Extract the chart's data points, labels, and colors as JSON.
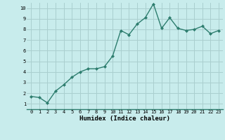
{
  "x": [
    0,
    1,
    2,
    3,
    4,
    5,
    6,
    7,
    8,
    9,
    10,
    11,
    12,
    13,
    14,
    15,
    16,
    17,
    18,
    19,
    20,
    21,
    22,
    23
  ],
  "y": [
    1.7,
    1.6,
    1.1,
    2.2,
    2.8,
    3.5,
    4.0,
    4.3,
    4.3,
    4.5,
    5.5,
    7.9,
    7.5,
    8.5,
    9.1,
    10.4,
    8.1,
    9.1,
    8.1,
    7.9,
    8.0,
    8.3,
    7.6,
    7.9
  ],
  "xlabel": "Humidex (Indice chaleur)",
  "ylim": [
    0.5,
    10.5
  ],
  "xlim": [
    -0.5,
    23.5
  ],
  "yticks": [
    1,
    2,
    3,
    4,
    5,
    6,
    7,
    8,
    9,
    10
  ],
  "xticks": [
    0,
    1,
    2,
    3,
    4,
    5,
    6,
    7,
    8,
    9,
    10,
    11,
    12,
    13,
    14,
    15,
    16,
    17,
    18,
    19,
    20,
    21,
    22,
    23
  ],
  "line_color": "#2d7d6e",
  "marker_color": "#2d7d6e",
  "bg_color": "#c8ecec",
  "grid_color": "#aacfcf",
  "xlabel_fontsize": 6.5,
  "tick_fontsize": 5.0
}
